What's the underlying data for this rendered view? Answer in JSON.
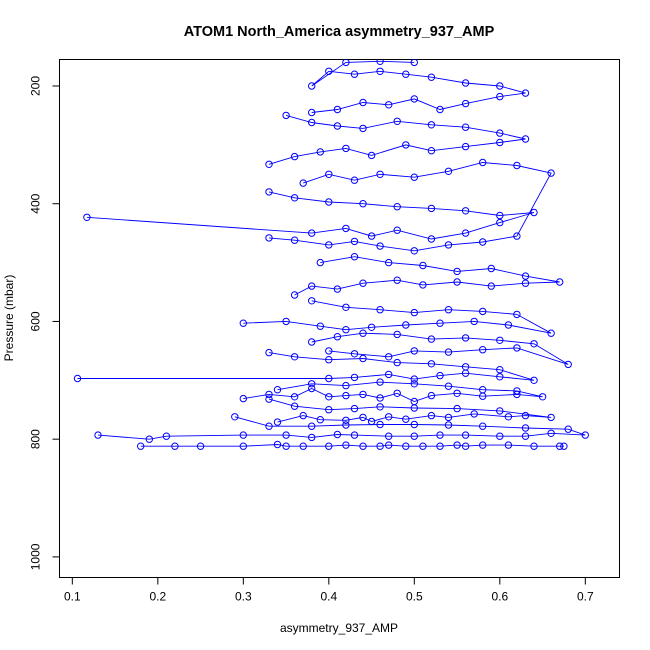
{
  "chart_data": {
    "type": "line",
    "title": "ATOM1 North_America asymmetry_937_AMP",
    "xlabel": "asymmetry_937_AMP",
    "ylabel": "Pressure (mbar)",
    "xlim": [
      0.085,
      0.74
    ],
    "ylim": [
      1035,
      155
    ],
    "y_reversed": true,
    "grid": false,
    "legend": "none",
    "x_ticks": [
      0.1,
      0.2,
      0.3,
      0.4,
      0.5,
      0.6,
      0.7
    ],
    "x_tick_labels": [
      "0.1",
      "0.2",
      "0.3",
      "0.4",
      "0.5",
      "0.6",
      "0.7"
    ],
    "y_ticks": [
      200,
      400,
      600,
      800,
      1000
    ],
    "y_tick_labels": [
      "200",
      "400",
      "600",
      "800",
      "1000"
    ],
    "color": "#0000ff",
    "series": [
      {
        "x": [
          0.18,
          0.22,
          0.25,
          0.3,
          0.34,
          0.35,
          0.37,
          0.4,
          0.42,
          0.44,
          0.46,
          0.47,
          0.49,
          0.51,
          0.53,
          0.55,
          0.56,
          0.58,
          0.61,
          0.64,
          0.67,
          0.675
        ],
        "y": [
          812,
          812,
          812,
          812,
          809,
          812,
          812,
          812,
          810,
          812,
          812,
          810,
          812,
          812,
          812,
          810,
          812,
          810,
          810,
          812,
          812,
          812
        ]
      },
      {
        "x": [
          0.13,
          0.19,
          0.21,
          0.3,
          0.35,
          0.38,
          0.41,
          0.43,
          0.47,
          0.5,
          0.53,
          0.56,
          0.6,
          0.63,
          0.66,
          0.7,
          0.68,
          0.63,
          0.58,
          0.54,
          0.5,
          0.46,
          0.42,
          0.38,
          0.33,
          0.29
        ],
        "y": [
          793,
          800,
          795,
          793,
          793,
          797,
          792,
          793,
          795,
          795,
          793,
          793,
          795,
          795,
          790,
          793,
          783,
          781,
          778,
          776,
          775,
          775,
          776,
          778,
          778,
          762
        ]
      },
      {
        "x": [
          0.34,
          0.37,
          0.39,
          0.42,
          0.44,
          0.45,
          0.47,
          0.49,
          0.52,
          0.54,
          0.57,
          0.61,
          0.63,
          0.66,
          0.6,
          0.55,
          0.5,
          0.46,
          0.43,
          0.4,
          0.36,
          0.33
        ],
        "y": [
          771,
          760,
          767,
          768,
          763,
          770,
          762,
          766,
          760,
          763,
          757,
          762,
          760,
          763,
          752,
          748,
          747,
          745,
          748,
          750,
          744,
          732
        ]
      },
      {
        "x": [
          0.3,
          0.33,
          0.36,
          0.38,
          0.4,
          0.42,
          0.44,
          0.46,
          0.48,
          0.5,
          0.52,
          0.55,
          0.58,
          0.62,
          0.65,
          0.62,
          0.58,
          0.54,
          0.5,
          0.46,
          0.42,
          0.38,
          0.34
        ],
        "y": [
          731,
          724,
          728,
          714,
          728,
          726,
          724,
          730,
          722,
          736,
          726,
          722,
          727,
          724,
          728,
          718,
          716,
          710,
          706,
          703,
          709,
          706,
          716
        ]
      },
      {
        "x": [
          0.106,
          0.4,
          0.43,
          0.47,
          0.5,
          0.53,
          0.56,
          0.6,
          0.64,
          0.6,
          0.56,
          0.52,
          0.48,
          0.44,
          0.4,
          0.36,
          0.33
        ],
        "y": [
          697,
          697,
          695,
          690,
          698,
          692,
          688,
          694,
          700,
          682,
          677,
          672,
          670,
          663,
          665,
          660,
          653
        ]
      },
      {
        "x": [
          0.4,
          0.43,
          0.47,
          0.5,
          0.54,
          0.58,
          0.62,
          0.68,
          0.64,
          0.6,
          0.56,
          0.52,
          0.48,
          0.44,
          0.41,
          0.38
        ],
        "y": [
          650,
          655,
          660,
          650,
          652,
          648,
          645,
          673,
          638,
          632,
          628,
          630,
          622,
          620,
          626,
          635
        ]
      },
      {
        "x": [
          0.3,
          0.35,
          0.39,
          0.42,
          0.45,
          0.49,
          0.53,
          0.57,
          0.61,
          0.66,
          0.62,
          0.58,
          0.54,
          0.5,
          0.46,
          0.42,
          0.38
        ],
        "y": [
          603,
          600,
          608,
          614,
          610,
          606,
          603,
          600,
          606,
          620,
          588,
          583,
          580,
          585,
          580,
          576,
          565
        ]
      },
      {
        "x": [
          0.36,
          0.38,
          0.41,
          0.44,
          0.48,
          0.51,
          0.55,
          0.59,
          0.63,
          0.67,
          0.63,
          0.59,
          0.55,
          0.51,
          0.47,
          0.43,
          0.39
        ],
        "y": [
          555,
          540,
          545,
          535,
          530,
          538,
          533,
          540,
          535,
          533,
          523,
          510,
          515,
          505,
          500,
          490,
          500
        ]
      },
      {
        "x": [
          0.117,
          0.38,
          0.42,
          0.45,
          0.48,
          0.52,
          0.56,
          0.6,
          0.64,
          0.6,
          0.56,
          0.52,
          0.48,
          0.44,
          0.4,
          0.36,
          0.33
        ],
        "y": [
          423,
          450,
          442,
          455,
          445,
          460,
          450,
          432,
          415,
          420,
          412,
          408,
          405,
          400,
          397,
          390,
          380
        ]
      },
      {
        "x": [
          0.33,
          0.36,
          0.4,
          0.43,
          0.46,
          0.5,
          0.54,
          0.58,
          0.62,
          0.66,
          0.62,
          0.58,
          0.54,
          0.5,
          0.46,
          0.43,
          0.4,
          0.37
        ],
        "y": [
          458,
          462,
          470,
          464,
          472,
          480,
          470,
          465,
          455,
          348,
          335,
          330,
          345,
          355,
          350,
          360,
          350,
          365
        ]
      },
      {
        "x": [
          0.33,
          0.36,
          0.39,
          0.42,
          0.45,
          0.49,
          0.52,
          0.56,
          0.6,
          0.63,
          0.6,
          0.56,
          0.52,
          0.48,
          0.44,
          0.41,
          0.38,
          0.35
        ],
        "y": [
          333,
          320,
          312,
          306,
          318,
          300,
          310,
          303,
          296,
          290,
          280,
          270,
          266,
          260,
          272,
          268,
          262,
          250
        ]
      },
      {
        "x": [
          0.38,
          0.41,
          0.44,
          0.47,
          0.5,
          0.53,
          0.56,
          0.6,
          0.63,
          0.6,
          0.56,
          0.52,
          0.49,
          0.46,
          0.43,
          0.4,
          0.38,
          0.42,
          0.46,
          0.5
        ],
        "y": [
          245,
          240,
          228,
          232,
          222,
          240,
          230,
          218,
          212,
          200,
          195,
          185,
          180,
          175,
          180,
          175,
          200,
          160,
          158,
          160
        ]
      }
    ]
  }
}
